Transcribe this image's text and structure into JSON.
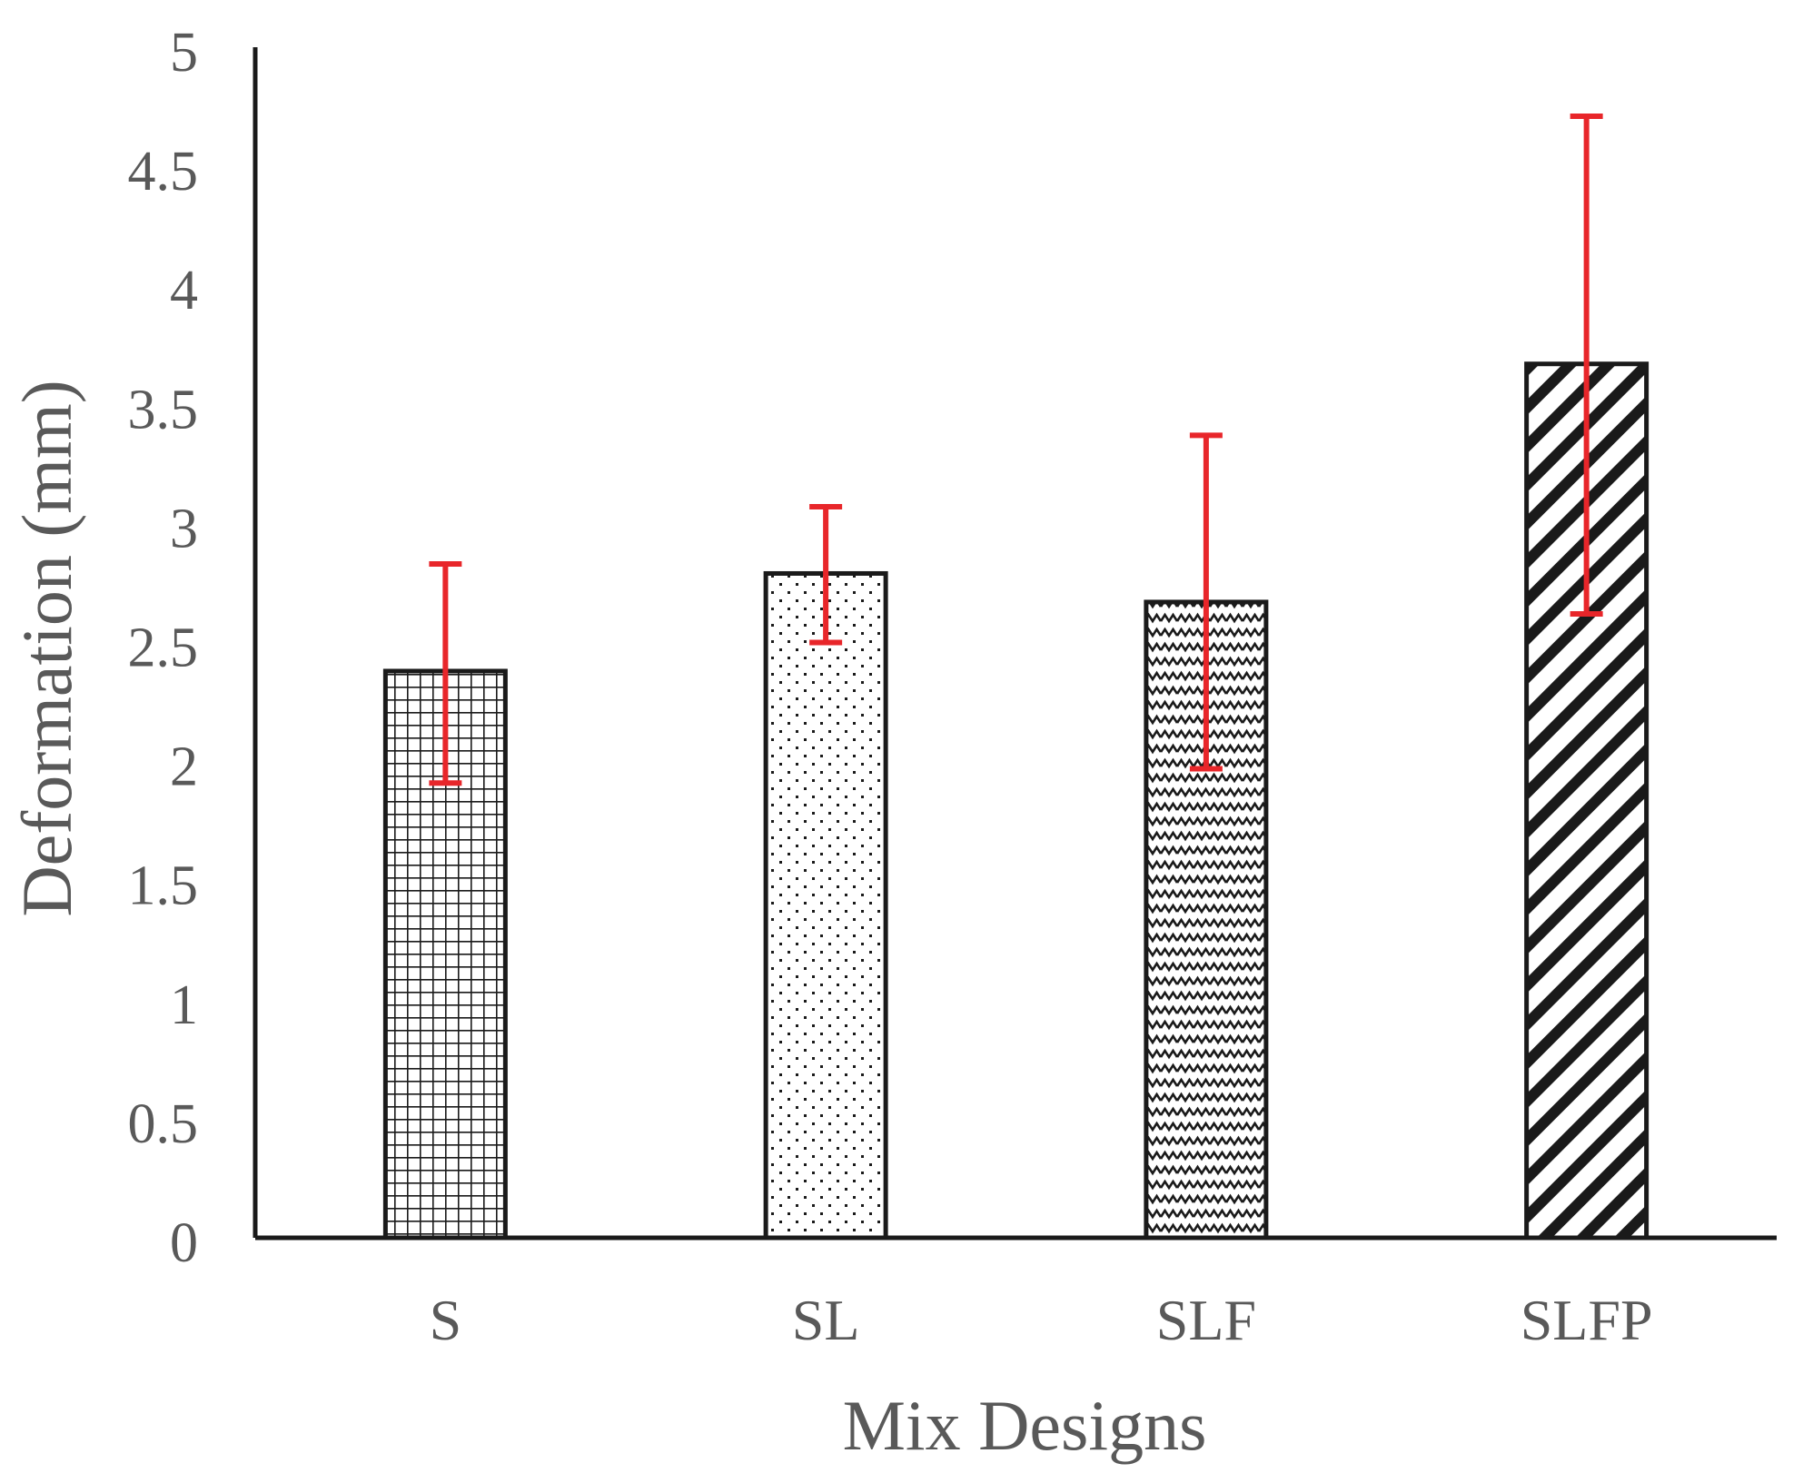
{
  "chart_data": {
    "type": "bar",
    "title": "",
    "xlabel": "Mix Designs",
    "ylabel": "Deformation (mm)",
    "ylim": [
      0,
      5
    ],
    "yticks": [
      0,
      0.5,
      1,
      1.5,
      2,
      2.5,
      3,
      3.5,
      4,
      4.5,
      5
    ],
    "ytick_labels": [
      "0",
      "0.5",
      "1",
      "1.5",
      "2",
      "2.5",
      "3",
      "3.5",
      "4",
      "4.5",
      "5"
    ],
    "categories": [
      "S",
      "SL",
      "SLF",
      "SLFP"
    ],
    "values": [
      2.38,
      2.79,
      2.67,
      3.67
    ],
    "error_low": [
      1.91,
      2.5,
      1.97,
      2.62
    ],
    "error_high": [
      2.83,
      3.07,
      3.37,
      4.71
    ],
    "patterns": [
      "grid",
      "dots",
      "zigzag",
      "diagonal"
    ],
    "grid": false,
    "legend": "none",
    "colors": {
      "bar_edge": "#1a1a1a",
      "bar_fill": "#ffffff",
      "pattern": "#1a1a1a",
      "error_bar": "#e8262a",
      "axis": "#1a1a1a",
      "text": "#595959"
    }
  }
}
